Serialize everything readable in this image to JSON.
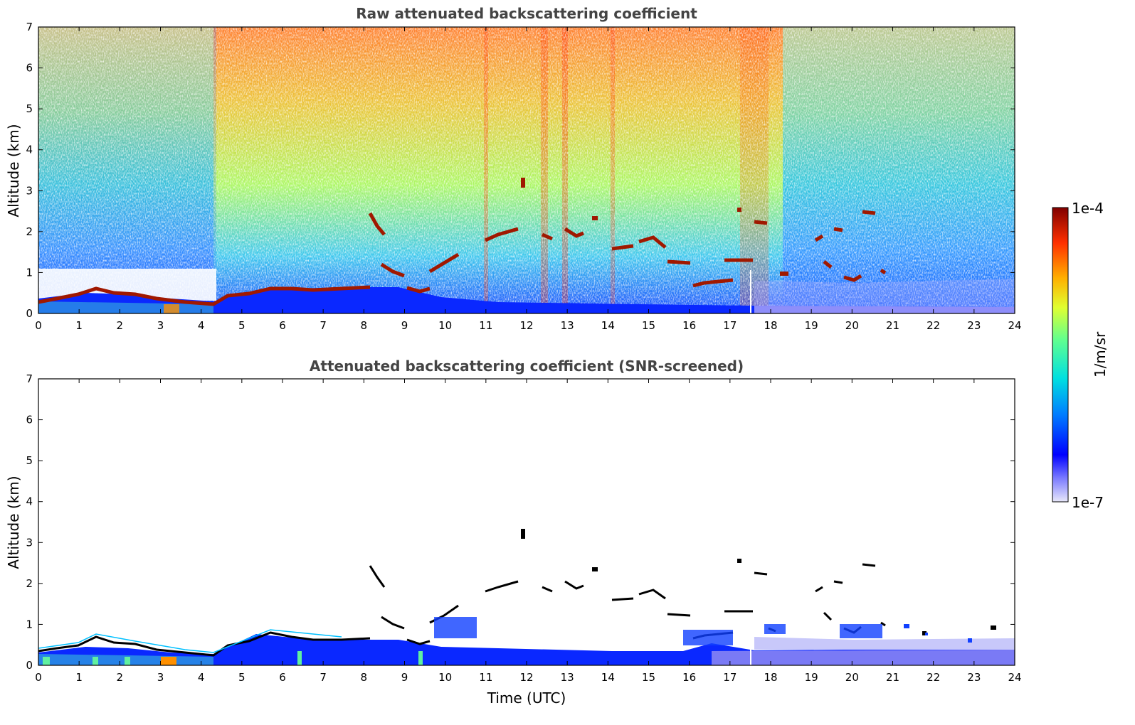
{
  "chart_data": [
    {
      "type": "heatmap",
      "title": "Raw attenuated backscattering coefficient",
      "xlabel": "",
      "ylabel": "Altitude (km)",
      "xlim": [
        0,
        24
      ],
      "ylim": [
        0,
        7
      ],
      "xticks": [
        0,
        1,
        2,
        3,
        4,
        5,
        6,
        7,
        8,
        9,
        10,
        11,
        12,
        13,
        14,
        15,
        16,
        17,
        18,
        19,
        20,
        21,
        22,
        23,
        24
      ],
      "yticks": [
        0,
        1,
        2,
        3,
        4,
        5,
        6,
        7
      ],
      "screened": false
    },
    {
      "type": "heatmap",
      "title": "Attenuated backscattering coefficient (SNR-screened)",
      "xlabel": "Time (UTC)",
      "ylabel": "Altitude (km)",
      "xlim": [
        0,
        24
      ],
      "ylim": [
        0,
        7
      ],
      "xticks": [
        0,
        1,
        2,
        3,
        4,
        5,
        6,
        7,
        8,
        9,
        10,
        11,
        12,
        13,
        14,
        15,
        16,
        17,
        18,
        19,
        20,
        21,
        22,
        23,
        24
      ],
      "yticks": [
        0,
        1,
        2,
        3,
        4,
        5,
        6,
        7
      ],
      "screened": true
    }
  ],
  "colorbar": {
    "label": "1/m/sr",
    "max_label": "1e-4",
    "min_label": "1e-7",
    "scale": "log",
    "colormap": [
      "#e8e8fa",
      "#7b7bff",
      "#0000ff",
      "#0080ff",
      "#00e0e0",
      "#60ff90",
      "#e0ff30",
      "#ffb000",
      "#ff3000",
      "#800000"
    ]
  },
  "layers": {
    "cloud_color": "#a01800",
    "boundary_layer_color": "#0033ff",
    "cloud_core_color": "#000000"
  }
}
